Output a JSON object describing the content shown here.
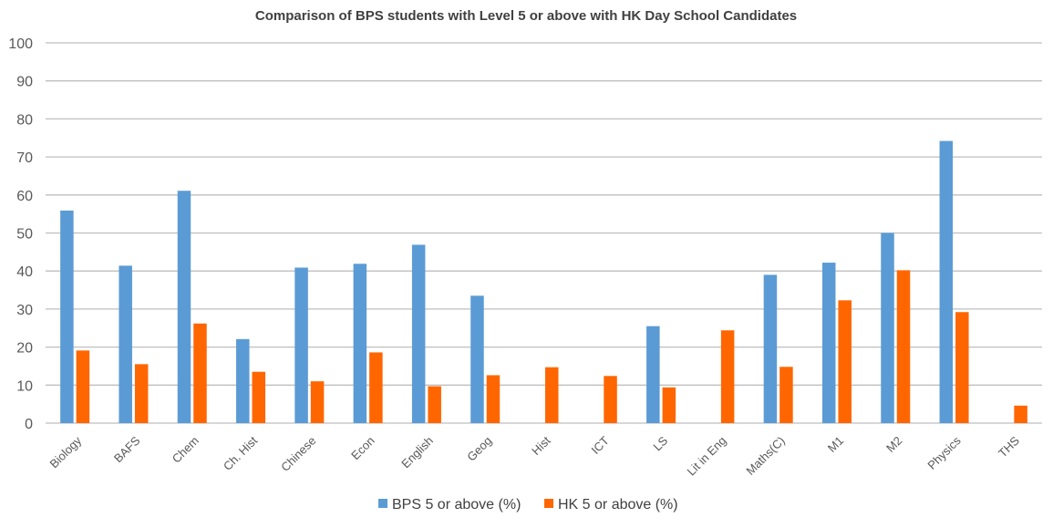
{
  "chart_data": {
    "type": "bar",
    "title": "Comparison of BPS students with Level 5 or above with HK Day School Candidates",
    "xlabel": "",
    "ylabel": "",
    "ylim": [
      0,
      100
    ],
    "yticks": [
      0,
      10,
      20,
      30,
      40,
      50,
      60,
      70,
      80,
      90,
      100
    ],
    "grid": true,
    "legend_position": "bottom",
    "categories": [
      "Biology",
      "BAFS",
      "Chem",
      "Ch. Hist",
      "Chinese",
      "Econ",
      "English",
      "Geog",
      "Hist",
      "ICT",
      "LS",
      "Lit in Eng",
      "Maths(C)",
      "M1",
      "M2",
      "Physics",
      "THS"
    ],
    "series": [
      {
        "name": "BPS 5 or above (%)",
        "color": "#5b9bd5",
        "values": [
          55.9,
          41.4,
          61.1,
          22.1,
          40.9,
          41.9,
          46.9,
          33.5,
          null,
          null,
          25.5,
          null,
          39,
          42.2,
          50,
          74.2,
          null
        ]
      },
      {
        "name": "HK 5 or above (%)",
        "color": "#ff6600",
        "values": [
          19.1,
          15.5,
          26.2,
          13.5,
          11,
          18.6,
          9.7,
          12.6,
          14.7,
          12.4,
          9.4,
          24.4,
          14.8,
          32.3,
          40.2,
          29.2,
          4.6
        ]
      }
    ]
  }
}
